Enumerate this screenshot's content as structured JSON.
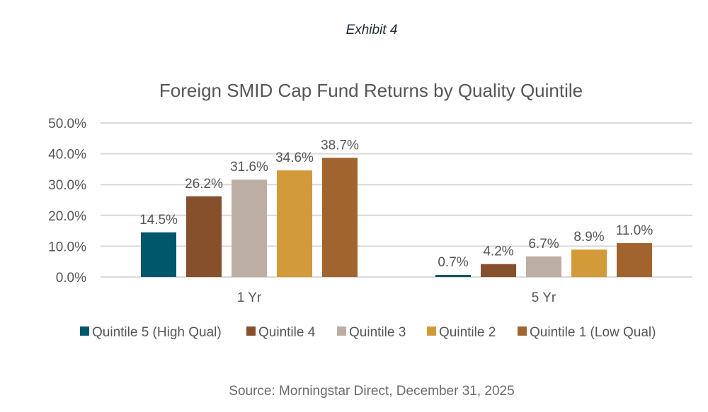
{
  "exhibit_label": "Exhibit 4",
  "source_note": "Source: Morningstar Direct, December 31, 2025",
  "chart_data": {
    "type": "bar",
    "title": "Foreign SMID Cap Fund Returns by Quality Quintile",
    "xlabel": "",
    "ylabel": "",
    "categories": [
      "1 Yr",
      "5 Yr"
    ],
    "ylim": [
      0,
      50
    ],
    "yticks": [
      0,
      10,
      20,
      30,
      40,
      50
    ],
    "ytick_labels": [
      "0.0%",
      "10.0%",
      "20.0%",
      "30.0%",
      "40.0%",
      "50.0%"
    ],
    "grid": true,
    "legend_position": "bottom",
    "series": [
      {
        "name": "Quintile 5 (High Qual)",
        "color": "#00566b",
        "values": [
          14.5,
          0.7
        ],
        "labels": [
          "14.5%",
          "0.7%"
        ]
      },
      {
        "name": "Quintile 4",
        "color": "#87502d",
        "values": [
          26.2,
          4.2
        ],
        "labels": [
          "26.2%",
          "4.2%"
        ]
      },
      {
        "name": "Quintile 3",
        "color": "#bdaea4",
        "values": [
          31.6,
          6.7
        ],
        "labels": [
          "31.6%",
          "6.7%"
        ]
      },
      {
        "name": "Quintile 2",
        "color": "#d29a39",
        "values": [
          34.6,
          8.9
        ],
        "labels": [
          "34.6%",
          "8.9%"
        ]
      },
      {
        "name": "Quintile 1 (Low Qual)",
        "color": "#a1642f",
        "values": [
          38.7,
          11.0
        ],
        "labels": [
          "38.7%",
          "11.0%"
        ]
      }
    ]
  }
}
